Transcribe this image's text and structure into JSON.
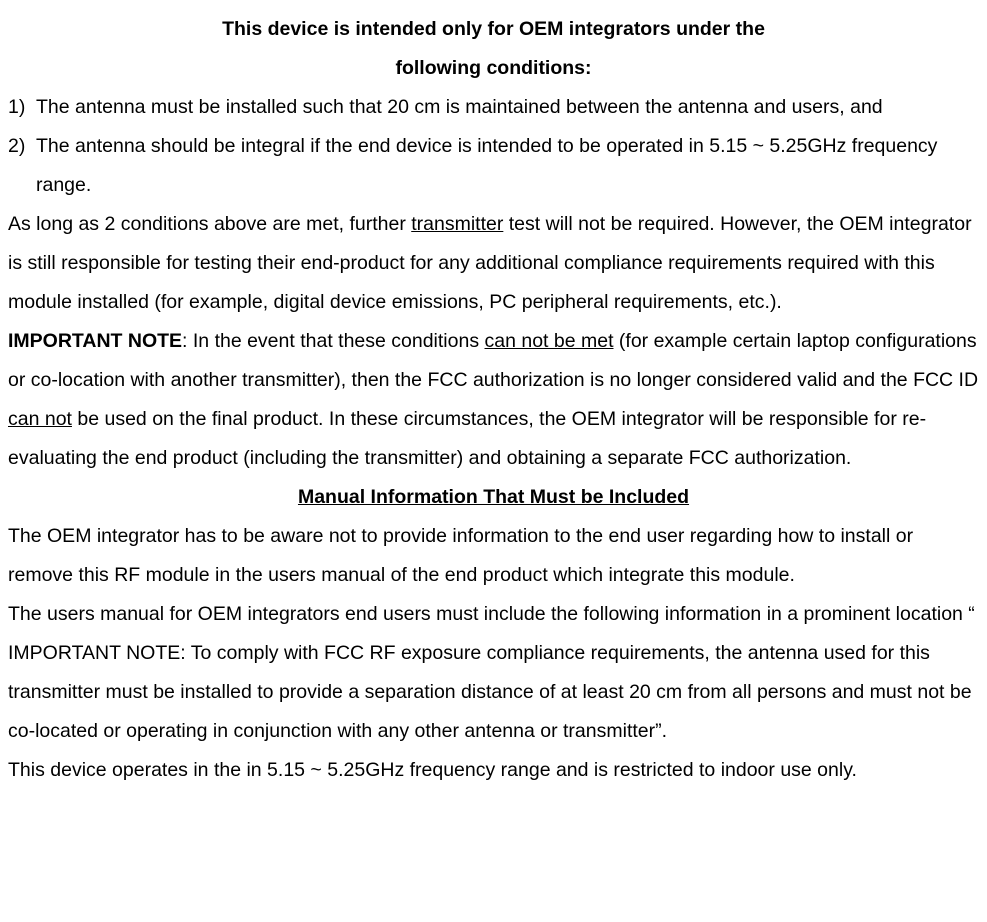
{
  "title_line1": "This device is intended only for OEM integrators under the",
  "title_line2": "following conditions:",
  "item1_marker": "1)",
  "item1_text": "The antenna must be installed such that 20 cm is maintained between the antenna and users, and",
  "item2_marker": "2)",
  "item2_text": "The antenna should be integral if the end device is intended to be operated in 5.15 ~ 5.25GHz frequency range.",
  "para1_a": "As long as 2 conditions above are met, further ",
  "para1_u": "transmitter",
  "para1_b": " test will not be required. However, the OEM integrator is still responsible for testing their end-product for any additional compliance requirements required with this module installed (for example, digital device emissions, PC peripheral requirements, etc.).",
  "para2_bold": "IMPORTANT NOTE",
  "para2_a": ": In the event that these conditions ",
  "para2_u1": "can not be met",
  "para2_b": " (for example certain laptop configurations or co-location with another transmitter), then the FCC authorization is no longer considered valid and the FCC ID ",
  "para2_u2": "can not",
  "para2_c": " be used on the final product. In these circumstances, the OEM integrator will be responsible for re-evaluating the end product (including the transmitter) and obtaining a separate FCC authorization.",
  "heading": "Manual Information That Must be Included",
  "para3": "The OEM integrator has to be aware not to provide information to the end user regarding how to install or remove this RF module in the users manual of the end product which integrate this module.",
  "para4": "The users manual for OEM integrators end users must include the following information in a prominent location “ IMPORTANT NOTE: To comply with FCC RF exposure compliance requirements, the antenna used for this transmitter must be installed to provide a separation distance of at least 20 cm from all persons and must not be co-located or operating in conjunction with any other antenna or transmitter”.",
  "para5": "This device operates in the in 5.15 ~ 5.25GHz frequency range and is restricted to indoor use only."
}
